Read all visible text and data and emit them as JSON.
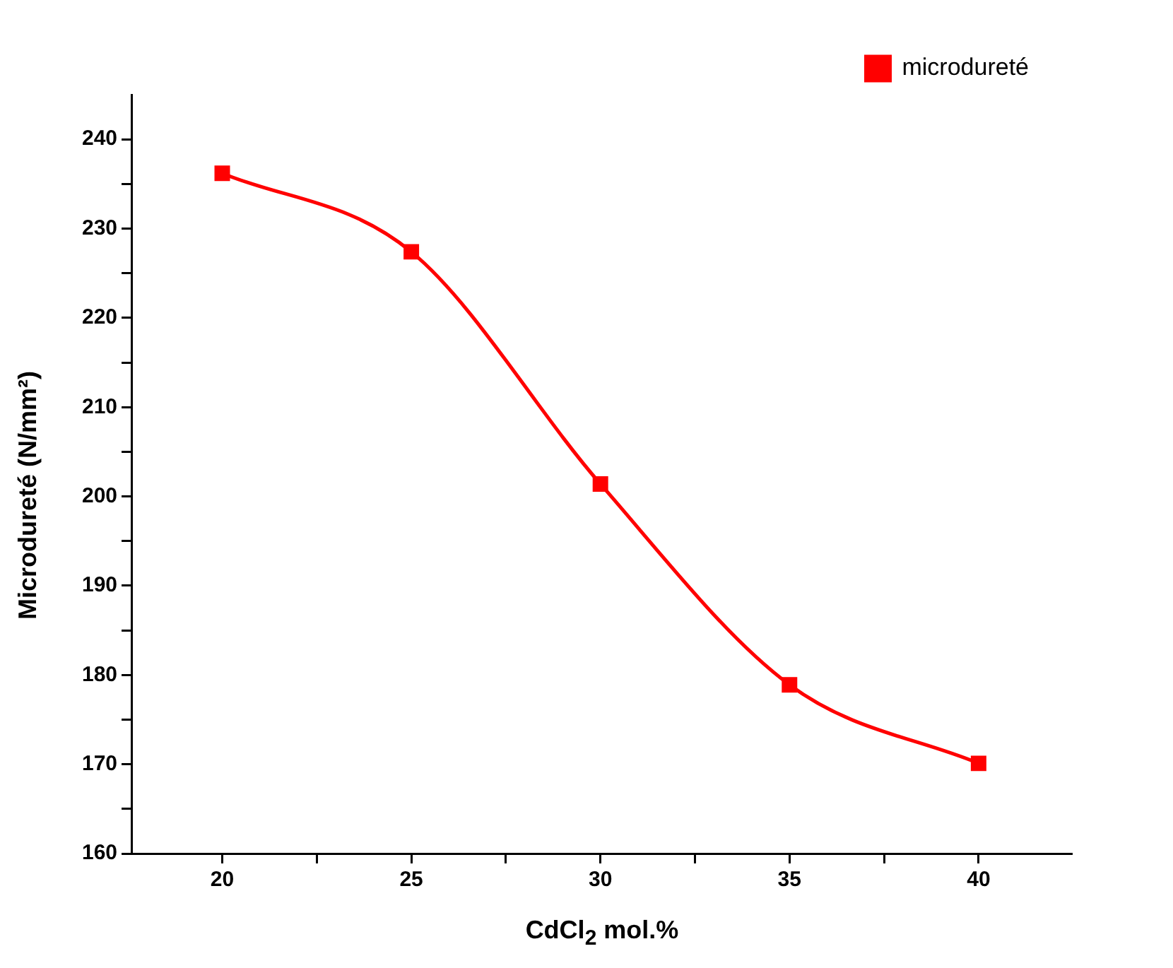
{
  "chart_data": {
    "type": "line",
    "xlabel": "CdCl$_{2}$ mol.%",
    "ylabel": "Microdureté (N/mm²)",
    "x": [
      20,
      25,
      30,
      35,
      40
    ],
    "series": [
      {
        "name": "microdureté",
        "color": "#ff0000",
        "values": [
          236.2,
          227.4,
          201.4,
          178.9,
          170.1
        ]
      }
    ],
    "xlim": [
      17.6,
      42.45
    ],
    "xticks": [
      20,
      {
        "value": 22.5,
        "label": null
      },
      25,
      {
        "value": 27.5,
        "label": null
      },
      30,
      {
        "value": 32.5,
        "label": null
      },
      35,
      {
        "value": 37.5,
        "label": null
      },
      40
    ],
    "ylim": [
      160,
      245
    ],
    "yticks": [
      160,
      {
        "value": 165,
        "label": null
      },
      170,
      {
        "value": 175,
        "label": null
      },
      180,
      {
        "value": 185,
        "label": null
      },
      190,
      {
        "value": 195,
        "label": null
      },
      200,
      {
        "value": 205,
        "label": null
      },
      210,
      {
        "value": 215,
        "label": null
      },
      220,
      {
        "value": 225,
        "label": null
      },
      230,
      {
        "value": 235,
        "label": null
      },
      240
    ],
    "grid": false,
    "legend": "top right",
    "marker": "square",
    "line_style": "solid"
  }
}
